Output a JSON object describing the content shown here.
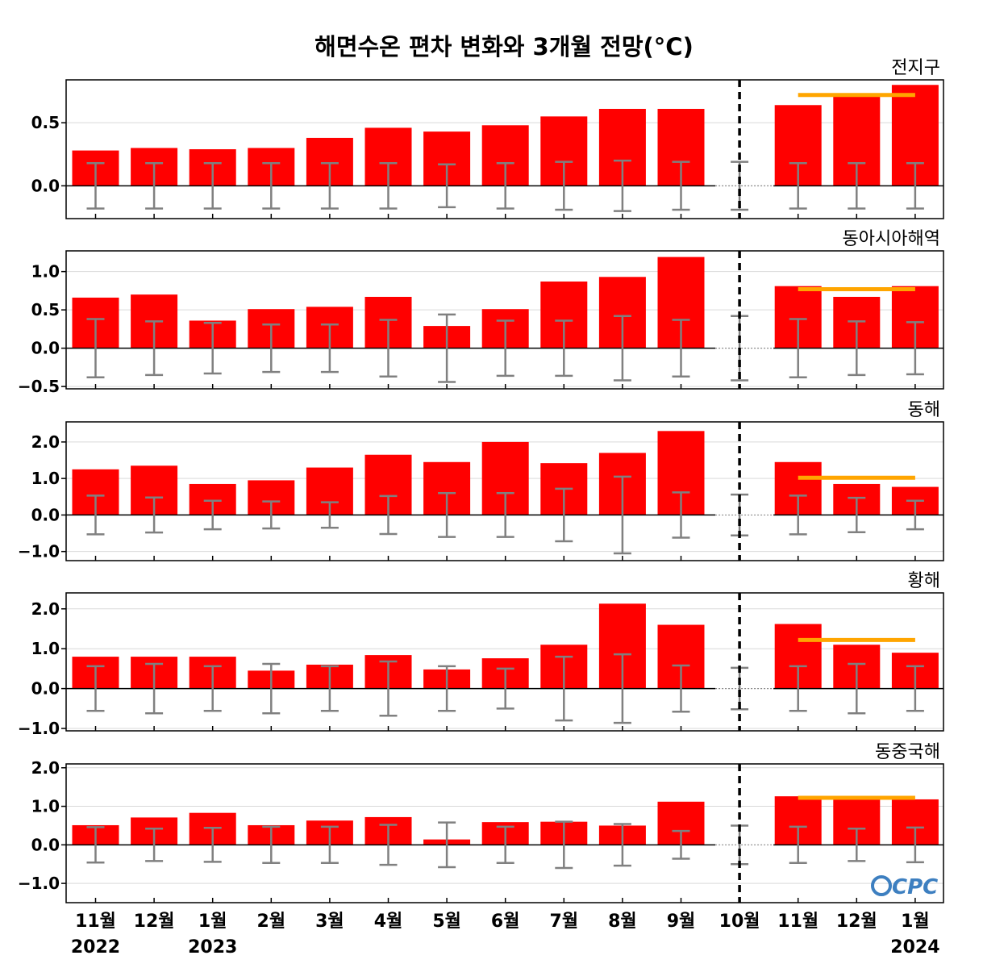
{
  "title": "해면수온 편차 변화와 3개월 전망(°C)",
  "logo": "CPC",
  "colors": {
    "bar": "#ff0000",
    "error": "#808080",
    "forecast_line": "#ffa500",
    "divider": "#000000"
  },
  "chart_data": {
    "type": "bar",
    "categories": [
      "11월",
      "12월",
      "1월",
      "2월",
      "3월",
      "4월",
      "5월",
      "6월",
      "7월",
      "8월",
      "9월",
      "10월",
      "11월",
      "12월",
      "1월"
    ],
    "years": [
      {
        "label": "2022",
        "category_index": 0
      },
      {
        "label": "2023",
        "category_index": 2
      },
      {
        "label": "2024",
        "category_index": 14
      }
    ],
    "current_month_index": 11,
    "error_bar_style": "symmetric about zero",
    "panels": [
      {
        "name": "전지구",
        "ylim": [
          -0.26,
          0.84
        ],
        "yticks": [
          0.0,
          0.5
        ],
        "tick_labels": [
          "0.0",
          "0.5"
        ],
        "values": [
          0.28,
          0.3,
          0.29,
          0.3,
          0.38,
          0.46,
          0.43,
          0.48,
          0.55,
          0.61,
          0.61,
          null,
          0.64,
          0.72,
          0.8
        ],
        "error": [
          0.18,
          0.18,
          0.18,
          0.18,
          0.18,
          0.18,
          0.17,
          0.18,
          0.19,
          0.2,
          0.19,
          0.19,
          0.18,
          0.18,
          0.18
        ],
        "forecast_mean": 0.72,
        "grid": true
      },
      {
        "name": "동아시아해역",
        "ylim": [
          -0.53,
          1.27
        ],
        "yticks": [
          -0.5,
          0.0,
          0.5,
          1.0
        ],
        "tick_labels": [
          "−0.5",
          "0.0",
          "0.5",
          "1.0"
        ],
        "values": [
          0.66,
          0.7,
          0.36,
          0.51,
          0.54,
          0.67,
          0.29,
          0.51,
          0.87,
          0.93,
          1.19,
          null,
          0.81,
          0.67,
          0.81
        ],
        "error": [
          0.38,
          0.35,
          0.33,
          0.31,
          0.31,
          0.37,
          0.44,
          0.36,
          0.36,
          0.42,
          0.37,
          0.42,
          0.38,
          0.35,
          0.34
        ],
        "forecast_mean": 0.77,
        "grid": true
      },
      {
        "name": "동해",
        "ylim": [
          -1.25,
          2.55
        ],
        "yticks": [
          -1.0,
          0.0,
          1.0,
          2.0
        ],
        "tick_labels": [
          "−1.0",
          "0.0",
          "1.0",
          "2.0"
        ],
        "values": [
          1.25,
          1.35,
          0.85,
          0.95,
          1.3,
          1.65,
          1.45,
          2.0,
          1.42,
          1.7,
          2.3,
          null,
          1.45,
          0.85,
          0.77
        ],
        "error": [
          0.53,
          0.48,
          0.39,
          0.37,
          0.35,
          0.52,
          0.6,
          0.6,
          0.72,
          1.05,
          0.62,
          0.56,
          0.53,
          0.47,
          0.39
        ],
        "forecast_mean": 1.02,
        "grid": true
      },
      {
        "name": "황해",
        "ylim": [
          -1.06,
          2.4
        ],
        "yticks": [
          -1.0,
          0.0,
          1.0,
          2.0
        ],
        "tick_labels": [
          "−1.0",
          "0.0",
          "1.0",
          "2.0"
        ],
        "values": [
          0.8,
          0.8,
          0.8,
          0.45,
          0.6,
          0.84,
          0.48,
          0.76,
          1.1,
          2.13,
          1.6,
          null,
          1.62,
          1.1,
          0.9
        ],
        "error": [
          0.56,
          0.62,
          0.56,
          0.62,
          0.56,
          0.68,
          0.56,
          0.5,
          0.8,
          0.86,
          0.58,
          0.52,
          0.56,
          0.62,
          0.56
        ],
        "forecast_mean": 1.22,
        "grid": true
      },
      {
        "name": "동중국해",
        "ylim": [
          -1.5,
          2.1
        ],
        "yticks": [
          -1.0,
          0.0,
          1.0,
          2.0
        ],
        "tick_labels": [
          "−1.0",
          "0.0",
          "1.0",
          "2.0"
        ],
        "values": [
          0.51,
          0.71,
          0.83,
          0.51,
          0.63,
          0.72,
          0.14,
          0.59,
          0.6,
          0.5,
          1.12,
          null,
          1.26,
          1.21,
          1.18
        ],
        "error": [
          0.46,
          0.42,
          0.44,
          0.47,
          0.47,
          0.52,
          0.58,
          0.47,
          0.6,
          0.54,
          0.36,
          0.5,
          0.47,
          0.42,
          0.45
        ],
        "forecast_mean": 1.22,
        "grid": true
      }
    ]
  }
}
